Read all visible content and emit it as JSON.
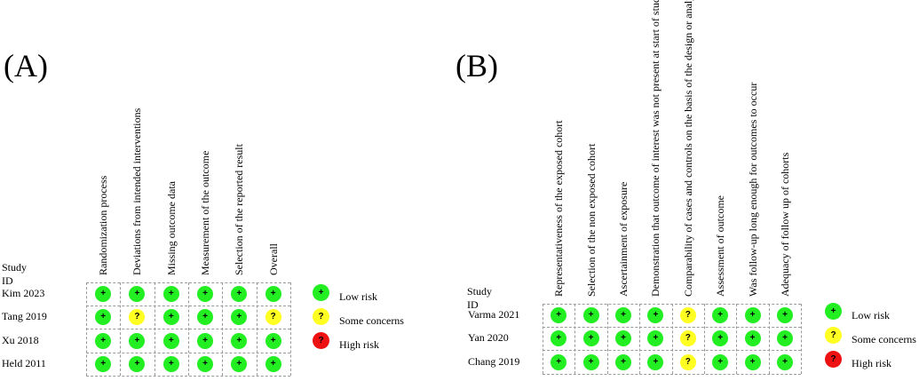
{
  "colors": {
    "low": "#22ee22",
    "some": "#ffff22",
    "high": "#ee1111"
  },
  "panelA": {
    "label": "(A)",
    "study_id_label": "Study ID",
    "columns": [
      "Randomization process",
      "Deviations from intended interventions",
      "Missing outcome data",
      "Measurement of the outcome",
      "Selection of the reported result",
      "Overall"
    ],
    "rows": [
      {
        "study": "Kim 2023",
        "ratings": [
          "low",
          "low",
          "low",
          "low",
          "low",
          "low"
        ]
      },
      {
        "study": "Tang 2019",
        "ratings": [
          "low",
          "some",
          "low",
          "low",
          "low",
          "some"
        ]
      },
      {
        "study": "Xu 2018",
        "ratings": [
          "low",
          "low",
          "low",
          "low",
          "low",
          "low"
        ]
      },
      {
        "study": "Held 2011",
        "ratings": [
          "low",
          "low",
          "low",
          "low",
          "low",
          "low"
        ]
      }
    ],
    "legend": [
      {
        "key": "low",
        "symbol": "+",
        "label": "Low risk"
      },
      {
        "key": "some",
        "symbol": "?",
        "label": "Some concerns"
      },
      {
        "key": "high",
        "symbol": "?",
        "label": "High risk"
      }
    ]
  },
  "panelB": {
    "label": "(B)",
    "study_id_label": "Study ID",
    "columns": [
      "Representativeness of the exposed cohort",
      "Selection of the non exposed cohort",
      "Ascertainment of exposure",
      "Demonstration that outcome of interest was not present at start of study",
      "Comparability of cases and controls on the basis of the design or analysis",
      "Assessment of outcome",
      "Was follow-up long enough for outcomes to occur",
      "Adequacy of follow up of cohorts"
    ],
    "rows": [
      {
        "study": "Varma 2021",
        "ratings": [
          "low",
          "low",
          "low",
          "low",
          "some",
          "low",
          "low",
          "low"
        ]
      },
      {
        "study": "Yan 2020",
        "ratings": [
          "low",
          "low",
          "low",
          "low",
          "some",
          "low",
          "low",
          "low"
        ]
      },
      {
        "study": "Chang 2019",
        "ratings": [
          "low",
          "low",
          "low",
          "low",
          "some",
          "low",
          "low",
          "low"
        ]
      }
    ],
    "legend": [
      {
        "key": "low",
        "symbol": "+",
        "label": "Low risk"
      },
      {
        "key": "some",
        "symbol": "?",
        "label": "Some concerns"
      },
      {
        "key": "high",
        "symbol": "?",
        "label": "High risk"
      }
    ]
  }
}
